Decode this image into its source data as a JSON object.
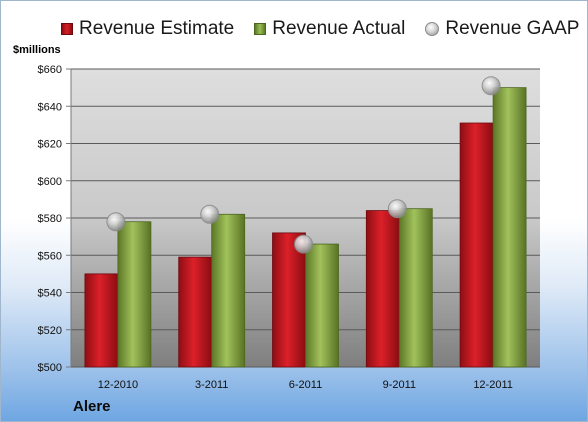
{
  "chart_data": {
    "type": "bar",
    "categories": [
      "12-2010",
      "3-2011",
      "6-2011",
      "9-2011",
      "12-2011"
    ],
    "series": [
      {
        "name": "Revenue Estimate",
        "kind": "bar",
        "values": [
          550,
          559,
          572,
          584,
          631
        ]
      },
      {
        "name": "Revenue Actual",
        "kind": "bar",
        "values": [
          578,
          582,
          566,
          585,
          650
        ]
      },
      {
        "name": "Revenue GAAP",
        "kind": "marker",
        "values": [
          578,
          582,
          566,
          585,
          651
        ]
      }
    ],
    "ylabel": "$millions",
    "ylim": [
      500,
      660
    ],
    "yticks": [
      500,
      520,
      540,
      560,
      580,
      600,
      620,
      640,
      660
    ],
    "ytick_labels": [
      "$500",
      "$520",
      "$540",
      "$560",
      "$580",
      "$600",
      "$620",
      "$640",
      "$660"
    ],
    "grid": true,
    "legend_position": "top",
    "company": "Alere",
    "colors": {
      "estimate": "#c8141c",
      "actual": "#88a84a",
      "gaap": "#b8b8b8"
    }
  }
}
